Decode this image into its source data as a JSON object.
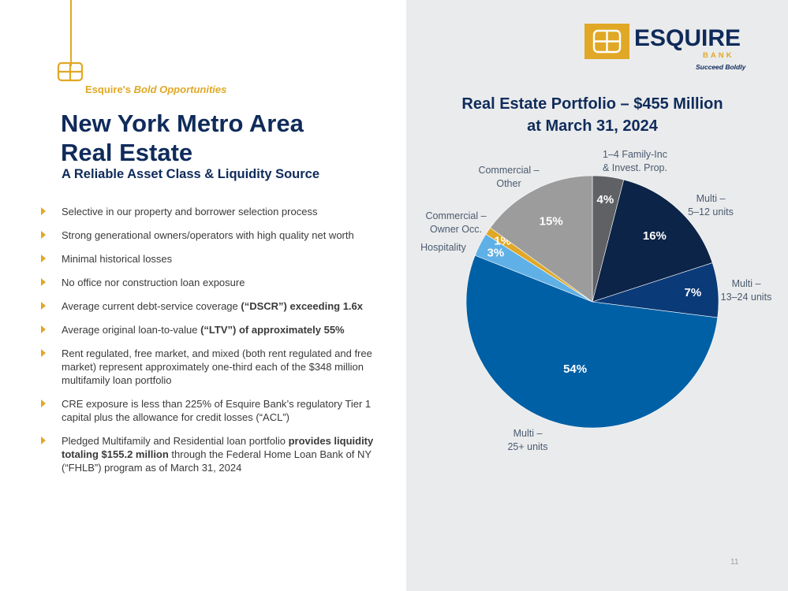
{
  "section": {
    "kicker_brand": "Esquire's",
    "kicker_rest": "Bold Opportunities"
  },
  "slide": {
    "title_line1": "New York Metro Area",
    "title_line2": "Real Estate",
    "subtitle": "A Reliable Asset Class & Liquidity Source",
    "page_number": "11"
  },
  "bullets": [
    {
      "parts": [
        {
          "t": "Selective in our property and borrower selection process",
          "b": false
        }
      ]
    },
    {
      "parts": [
        {
          "t": "Strong generational owners/operators with high quality net worth",
          "b": false
        }
      ]
    },
    {
      "parts": [
        {
          "t": "Minimal historical losses",
          "b": false
        }
      ]
    },
    {
      "parts": [
        {
          "t": "No office nor construction loan exposure",
          "b": false
        }
      ]
    },
    {
      "parts": [
        {
          "t": "Average current debt-service coverage ",
          "b": false
        },
        {
          "t": "(“DSCR”) exceeding 1.6x",
          "b": true
        }
      ]
    },
    {
      "parts": [
        {
          "t": "Average original loan-to-value ",
          "b": false
        },
        {
          "t": "(“LTV”) of approximately 55%",
          "b": true
        }
      ]
    },
    {
      "parts": [
        {
          "t": "Rent regulated, free market, and mixed (both rent regulated and free market) represent approximately one-third each of the $348 million multifamily loan portfolio",
          "b": false
        }
      ]
    },
    {
      "parts": [
        {
          "t": "CRE exposure is less than 225% of Esquire Bank’s regulatory Tier 1 capital plus the allowance for credit losses (“ACL”)",
          "b": false
        }
      ]
    },
    {
      "parts": [
        {
          "t": "Pledged Multifamily and Residential loan portfolio ",
          "b": false
        },
        {
          "t": "provides liquidity totaling $155.2 million",
          "b": true
        },
        {
          "t": " through the Federal Home Loan Bank of NY (“FHLB”) program as of March 31, 2024",
          "b": false
        }
      ]
    }
  ],
  "logo": {
    "wordmark": "ESQUIRE",
    "bank": "BANK",
    "tagline": "Succeed Boldly"
  },
  "colors": {
    "navy": "#0f2b5b",
    "gold": "#e0a826",
    "panel": "#eaebec"
  },
  "chart_data": {
    "type": "pie",
    "title_line1": "Real Estate Portfolio – $455 Million",
    "title_line2": "at March 31, 2024",
    "start_angle_deg": 0,
    "slices": [
      {
        "name_lines": [
          "1–4 Family-Inc",
          "& Invest. Prop."
        ],
        "value": 4,
        "label": "4%",
        "color": "#5f6165"
      },
      {
        "name_lines": [
          "Multi –",
          "5–12 units"
        ],
        "value": 16,
        "label": "16%",
        "color": "#0c2447"
      },
      {
        "name_lines": [
          "Multi –",
          "13–24 units"
        ],
        "value": 7,
        "label": "7%",
        "color": "#0b3a78"
      },
      {
        "name_lines": [
          "Multi –",
          "25+ units"
        ],
        "value": 54,
        "label": "54%",
        "color": "#0060a6"
      },
      {
        "name_lines": [
          "Hospitality"
        ],
        "value": 3,
        "label": "3%",
        "color": "#5fb0e6"
      },
      {
        "name_lines": [
          "Commercial –",
          "Owner Occ."
        ],
        "value": 1,
        "label": "1%",
        "color": "#e0a826"
      },
      {
        "name_lines": [
          "Commercial –",
          "Other"
        ],
        "value": 15,
        "label": "15%",
        "color": "#9c9c9c"
      }
    ]
  }
}
